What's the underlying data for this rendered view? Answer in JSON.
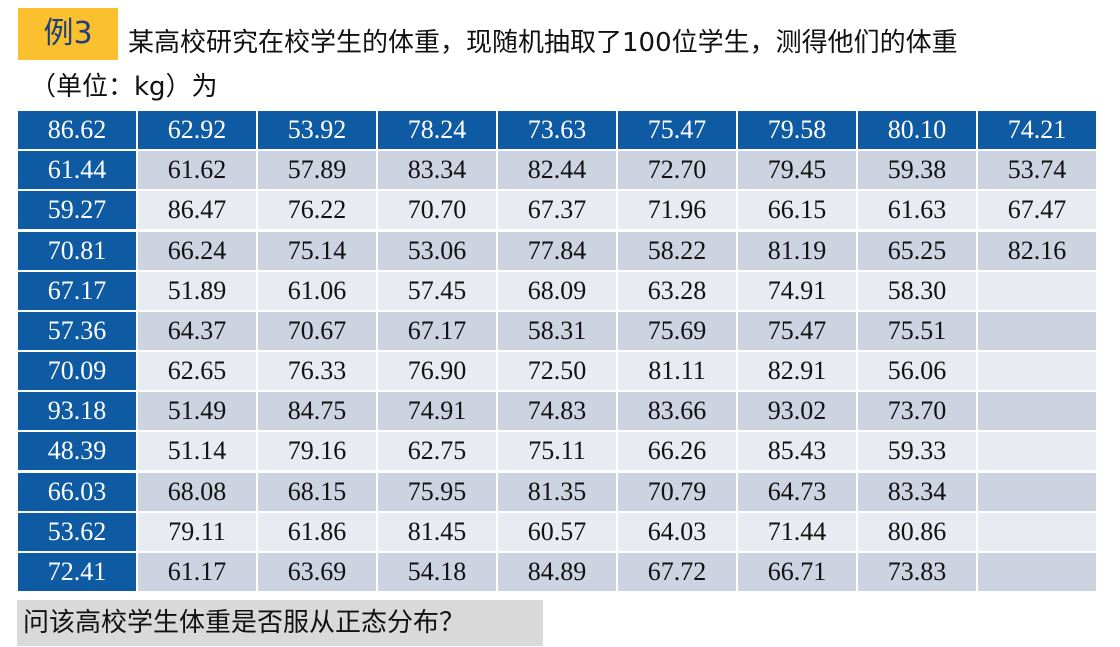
{
  "header": {
    "label": "例3",
    "text": "某高校研究在校学生的体重，现随机抽取了100位学生，测得他们的体重",
    "unit_line": "（单位：kg）为"
  },
  "table": {
    "rows": [
      [
        "86.62",
        "62.92",
        "53.92",
        "78.24",
        "73.63",
        "75.47",
        "79.58",
        "80.10",
        "74.21"
      ],
      [
        "61.44",
        "61.62",
        "57.89",
        "83.34",
        "82.44",
        "72.70",
        "79.45",
        "59.38",
        "53.74"
      ],
      [
        "59.27",
        "86.47",
        "76.22",
        "70.70",
        "67.37",
        "71.96",
        "66.15",
        "61.63",
        "67.47"
      ],
      [
        "70.81",
        "66.24",
        "75.14",
        "53.06",
        "77.84",
        "58.22",
        "81.19",
        "65.25",
        "82.16"
      ],
      [
        "67.17",
        "51.89",
        "61.06",
        "57.45",
        "68.09",
        "63.28",
        "74.91",
        "58.30",
        null
      ],
      [
        "57.36",
        "64.37",
        "70.67",
        "67.17",
        "58.31",
        "75.69",
        "75.47",
        "75.51",
        null
      ],
      [
        "70.09",
        "62.65",
        "76.33",
        "76.90",
        "72.50",
        "81.11",
        "82.91",
        "56.06",
        null
      ],
      [
        "93.18",
        "51.49",
        "84.75",
        "74.91",
        "74.83",
        "83.66",
        "93.02",
        "73.70",
        null
      ],
      [
        "48.39",
        "51.14",
        "79.16",
        "62.75",
        "75.11",
        "66.26",
        "85.43",
        "59.33",
        null
      ],
      [
        "66.03",
        "68.08",
        "68.15",
        "75.95",
        "81.35",
        "70.79",
        "64.73",
        "83.34",
        null
      ],
      [
        "53.62",
        "79.11",
        "61.86",
        "81.45",
        "60.57",
        "64.03",
        "71.44",
        "80.86",
        null
      ],
      [
        "72.41",
        "61.17",
        "63.69",
        "54.18",
        "84.89",
        "67.72",
        "66.71",
        "73.83",
        null
      ]
    ]
  },
  "question": "问该高校学生体重是否服从正态分布？"
}
